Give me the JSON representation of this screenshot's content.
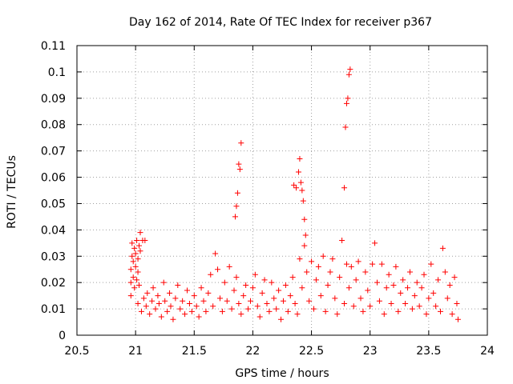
{
  "chart_data": {
    "type": "scatter",
    "title": "Day 162 of 2014, Rate Of TEC Index for receiver p367",
    "xlabel": "GPS time / hours",
    "ylabel": "ROTI / TECUs",
    "xlim": [
      20.5,
      24
    ],
    "ylim": [
      0,
      0.11
    ],
    "xticks": [
      20.5,
      21,
      21.5,
      22,
      22.5,
      23,
      23.5,
      24
    ],
    "xtick_labels": [
      "20.5",
      "21",
      "21.5",
      "22",
      "22.5",
      "23",
      "23.5",
      "24"
    ],
    "yticks": [
      0,
      0.01,
      0.02,
      0.03,
      0.04,
      0.05,
      0.06,
      0.07,
      0.08,
      0.09,
      0.1,
      0.11
    ],
    "ytick_labels": [
      "0",
      "0.01",
      "0.02",
      "0.03",
      "0.04",
      "0.05",
      "0.06",
      "0.07",
      "0.08",
      "0.09",
      "0.1",
      "0.11"
    ],
    "grid": true,
    "marker": "+",
    "color": "#ff0000",
    "series": [
      {
        "name": "ROTI",
        "points": [
          [
            20.96,
            0.015
          ],
          [
            20.96,
            0.02
          ],
          [
            20.96,
            0.025
          ],
          [
            20.97,
            0.03
          ],
          [
            20.97,
            0.035
          ],
          [
            20.98,
            0.022
          ],
          [
            20.98,
            0.028
          ],
          [
            20.99,
            0.033
          ],
          [
            20.99,
            0.018
          ],
          [
            21.0,
            0.026
          ],
          [
            21.0,
            0.031
          ],
          [
            21.01,
            0.036
          ],
          [
            21.01,
            0.021
          ],
          [
            21.02,
            0.029
          ],
          [
            21.02,
            0.024
          ],
          [
            21.03,
            0.034
          ],
          [
            21.03,
            0.019
          ],
          [
            21.04,
            0.032
          ],
          [
            21.04,
            0.039
          ],
          [
            21.06,
            0.036
          ],
          [
            21.08,
            0.036
          ],
          [
            21.02,
            0.012
          ],
          [
            21.05,
            0.009
          ],
          [
            21.07,
            0.014
          ],
          [
            21.09,
            0.011
          ],
          [
            21.1,
            0.016
          ],
          [
            21.12,
            0.008
          ],
          [
            21.14,
            0.013
          ],
          [
            21.15,
            0.018
          ],
          [
            21.17,
            0.01
          ],
          [
            21.19,
            0.015
          ],
          [
            21.2,
            0.012
          ],
          [
            21.22,
            0.007
          ],
          [
            21.24,
            0.02
          ],
          [
            21.25,
            0.013
          ],
          [
            21.27,
            0.009
          ],
          [
            21.29,
            0.016
          ],
          [
            21.3,
            0.011
          ],
          [
            21.32,
            0.006
          ],
          [
            21.34,
            0.014
          ],
          [
            21.36,
            0.019
          ],
          [
            21.38,
            0.01
          ],
          [
            21.4,
            0.013
          ],
          [
            21.42,
            0.008
          ],
          [
            21.44,
            0.017
          ],
          [
            21.46,
            0.012
          ],
          [
            21.48,
            0.009
          ],
          [
            21.5,
            0.015
          ],
          [
            21.52,
            0.011
          ],
          [
            21.54,
            0.007
          ],
          [
            21.56,
            0.018
          ],
          [
            21.58,
            0.013
          ],
          [
            21.6,
            0.009
          ],
          [
            21.62,
            0.016
          ],
          [
            21.64,
            0.023
          ],
          [
            21.66,
            0.011
          ],
          [
            21.68,
            0.031
          ],
          [
            21.7,
            0.025
          ],
          [
            21.72,
            0.014
          ],
          [
            21.74,
            0.009
          ],
          [
            21.76,
            0.02
          ],
          [
            21.78,
            0.013
          ],
          [
            21.8,
            0.026
          ],
          [
            21.82,
            0.01
          ],
          [
            21.84,
            0.017
          ],
          [
            21.86,
            0.022
          ],
          [
            21.88,
            0.012
          ],
          [
            21.9,
            0.008
          ],
          [
            21.92,
            0.015
          ],
          [
            21.94,
            0.019
          ],
          [
            21.96,
            0.01
          ],
          [
            21.98,
            0.013
          ],
          [
            22.0,
            0.018
          ],
          [
            22.02,
            0.023
          ],
          [
            22.04,
            0.011
          ],
          [
            22.06,
            0.007
          ],
          [
            22.08,
            0.016
          ],
          [
            22.1,
            0.021
          ],
          [
            22.12,
            0.012
          ],
          [
            22.14,
            0.009
          ],
          [
            22.16,
            0.02
          ],
          [
            22.18,
            0.014
          ],
          [
            22.2,
            0.01
          ],
          [
            22.22,
            0.017
          ],
          [
            22.24,
            0.006
          ],
          [
            22.26,
            0.013
          ],
          [
            22.28,
            0.019
          ],
          [
            22.3,
            0.009
          ],
          [
            22.32,
            0.015
          ],
          [
            22.34,
            0.022
          ],
          [
            22.36,
            0.012
          ],
          [
            22.38,
            0.008
          ],
          [
            22.4,
            0.029
          ],
          [
            22.42,
            0.018
          ],
          [
            22.44,
            0.034
          ],
          [
            22.46,
            0.024
          ],
          [
            22.48,
            0.013
          ],
          [
            22.5,
            0.028
          ],
          [
            22.52,
            0.01
          ],
          [
            22.54,
            0.021
          ],
          [
            22.56,
            0.026
          ],
          [
            22.58,
            0.015
          ],
          [
            22.6,
            0.03
          ],
          [
            22.62,
            0.009
          ],
          [
            22.64,
            0.019
          ],
          [
            22.66,
            0.024
          ],
          [
            22.68,
            0.029
          ],
          [
            22.7,
            0.014
          ],
          [
            22.72,
            0.008
          ],
          [
            22.74,
            0.022
          ],
          [
            22.76,
            0.036
          ],
          [
            22.78,
            0.012
          ],
          [
            22.8,
            0.027
          ],
          [
            22.82,
            0.018
          ],
          [
            22.84,
            0.026
          ],
          [
            22.86,
            0.011
          ],
          [
            22.88,
            0.021
          ],
          [
            22.9,
            0.028
          ],
          [
            22.92,
            0.014
          ],
          [
            22.94,
            0.009
          ],
          [
            22.96,
            0.024
          ],
          [
            22.98,
            0.017
          ],
          [
            23.0,
            0.011
          ],
          [
            23.02,
            0.027
          ],
          [
            23.04,
            0.035
          ],
          [
            23.06,
            0.02
          ],
          [
            23.08,
            0.013
          ],
          [
            23.1,
            0.027
          ],
          [
            23.12,
            0.008
          ],
          [
            23.14,
            0.018
          ],
          [
            23.16,
            0.023
          ],
          [
            23.18,
            0.012
          ],
          [
            23.2,
            0.019
          ],
          [
            23.22,
            0.026
          ],
          [
            23.24,
            0.009
          ],
          [
            23.26,
            0.016
          ],
          [
            23.28,
            0.021
          ],
          [
            23.3,
            0.012
          ],
          [
            23.32,
            0.018
          ],
          [
            23.34,
            0.024
          ],
          [
            23.36,
            0.01
          ],
          [
            23.38,
            0.015
          ],
          [
            23.4,
            0.02
          ],
          [
            23.42,
            0.011
          ],
          [
            23.44,
            0.018
          ],
          [
            23.46,
            0.023
          ],
          [
            23.48,
            0.008
          ],
          [
            23.5,
            0.014
          ],
          [
            23.52,
            0.027
          ],
          [
            23.54,
            0.016
          ],
          [
            23.56,
            0.011
          ],
          [
            23.58,
            0.021
          ],
          [
            23.6,
            0.009
          ],
          [
            23.62,
            0.033
          ],
          [
            23.64,
            0.024
          ],
          [
            23.66,
            0.014
          ],
          [
            23.68,
            0.019
          ],
          [
            23.7,
            0.008
          ],
          [
            23.72,
            0.022
          ],
          [
            23.74,
            0.012
          ],
          [
            23.75,
            0.006
          ],
          [
            21.85,
            0.045
          ],
          [
            21.86,
            0.049
          ],
          [
            21.87,
            0.054
          ],
          [
            21.88,
            0.065
          ],
          [
            21.89,
            0.063
          ],
          [
            21.9,
            0.073
          ],
          [
            22.35,
            0.057
          ],
          [
            22.37,
            0.056
          ],
          [
            22.39,
            0.062
          ],
          [
            22.4,
            0.067
          ],
          [
            22.41,
            0.058
          ],
          [
            22.42,
            0.055
          ],
          [
            22.43,
            0.051
          ],
          [
            22.44,
            0.044
          ],
          [
            22.45,
            0.038
          ],
          [
            22.78,
            0.056
          ],
          [
            22.79,
            0.079
          ],
          [
            22.8,
            0.088
          ],
          [
            22.81,
            0.09
          ],
          [
            22.82,
            0.099
          ],
          [
            22.83,
            0.101
          ]
        ]
      }
    ]
  }
}
